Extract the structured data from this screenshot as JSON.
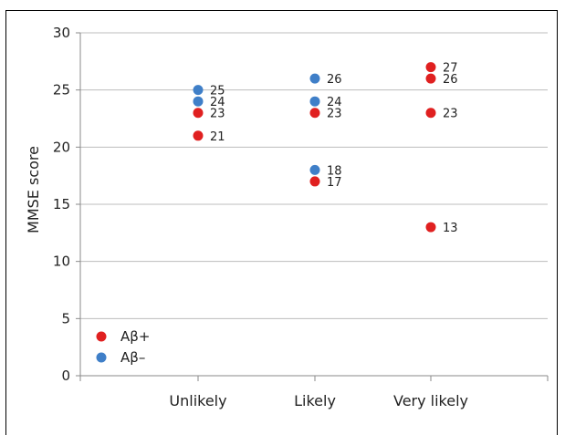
{
  "chart_data": {
    "type": "scatter",
    "ylabel": "MMSE score",
    "ylim": [
      0,
      30
    ],
    "yticks": [
      "0",
      "5",
      "10",
      "15",
      "20",
      "25",
      "30"
    ],
    "categories": [
      "Unlikely",
      "Likely",
      "Very likely"
    ],
    "grid": true,
    "legend_position": "bottom-left",
    "series": [
      {
        "name": "Aβ+",
        "color": "#e02020",
        "points": [
          {
            "category": "Unlikely",
            "y": 23,
            "label": "23"
          },
          {
            "category": "Unlikely",
            "y": 21,
            "label": "21"
          },
          {
            "category": "Likely",
            "y": 23,
            "label": "23"
          },
          {
            "category": "Likely",
            "y": 17,
            "label": "17"
          },
          {
            "category": "Very likely",
            "y": 27,
            "label": "27"
          },
          {
            "category": "Very likely",
            "y": 26,
            "label": "26"
          },
          {
            "category": "Very likely",
            "y": 23,
            "label": "23"
          },
          {
            "category": "Very likely",
            "y": 13,
            "label": "13"
          }
        ]
      },
      {
        "name": "Aβ–",
        "color": "#3f7fc8",
        "points": [
          {
            "category": "Unlikely",
            "y": 25,
            "label": "25"
          },
          {
            "category": "Unlikely",
            "y": 24,
            "label": "24"
          },
          {
            "category": "Likely",
            "y": 26,
            "label": "26"
          },
          {
            "category": "Likely",
            "y": 24,
            "label": "24"
          },
          {
            "category": "Likely",
            "y": 18,
            "label": "18"
          }
        ]
      }
    ]
  }
}
